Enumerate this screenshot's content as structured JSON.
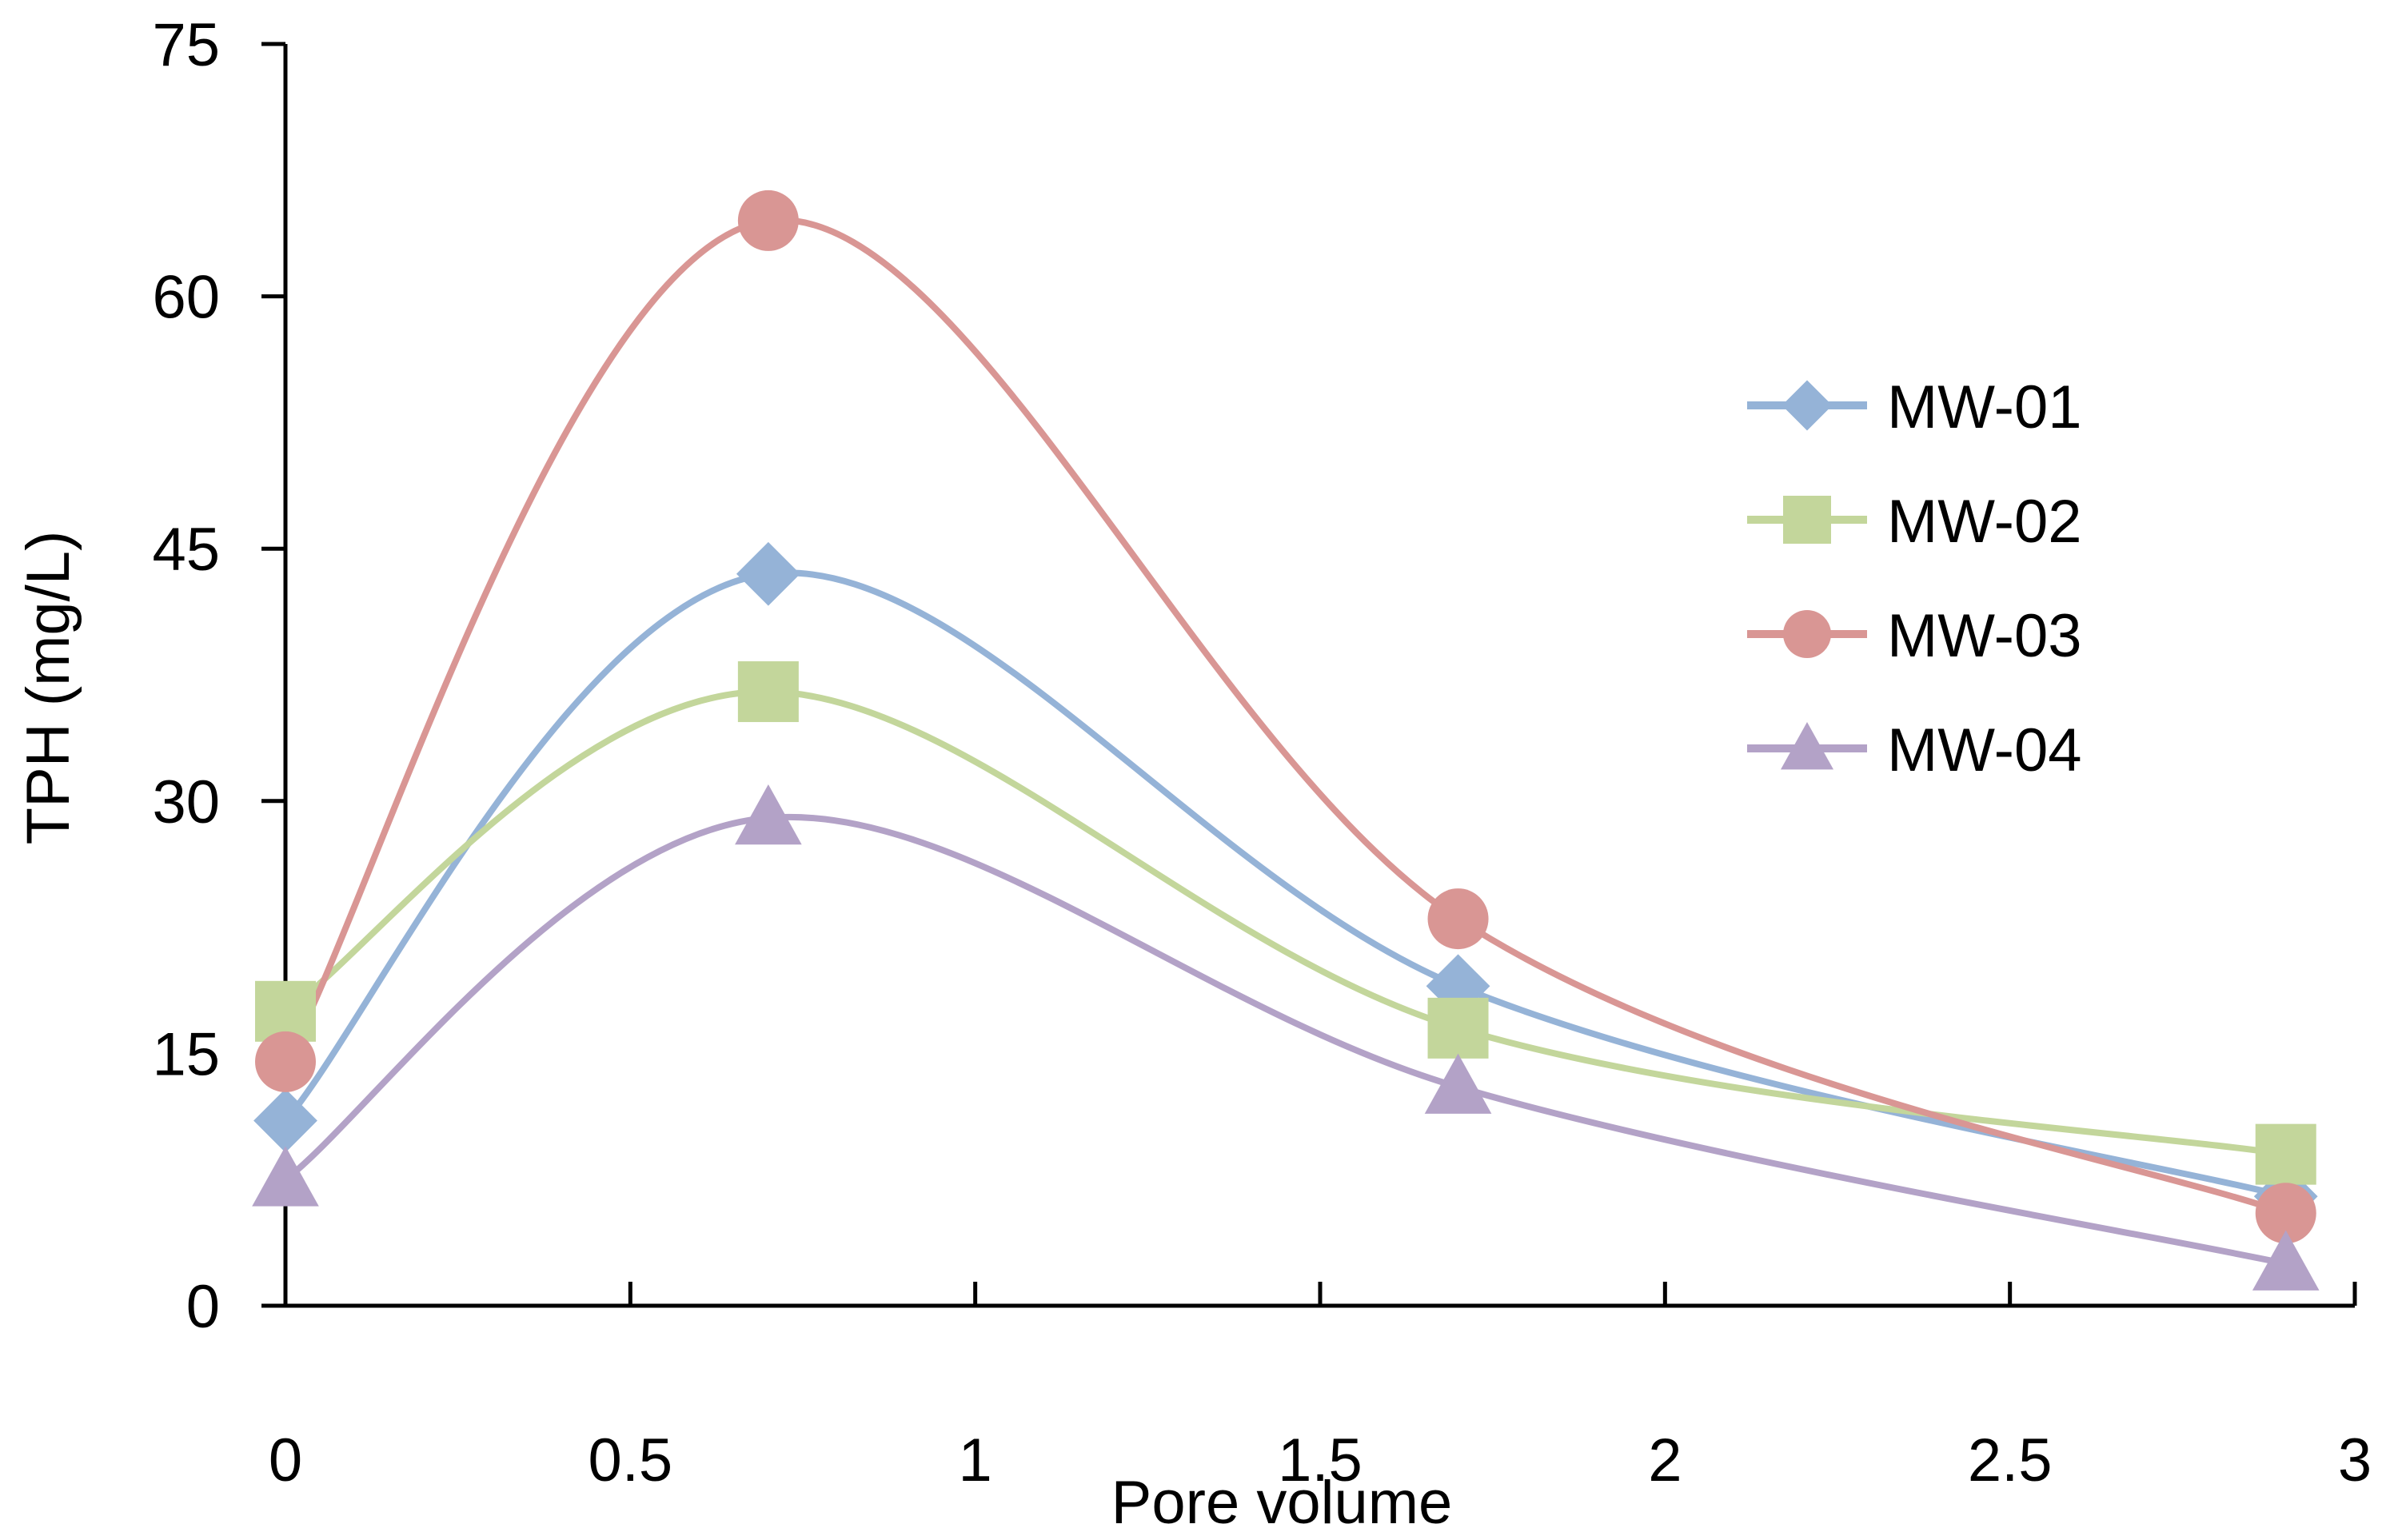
{
  "chart_data": {
    "type": "line",
    "title": "",
    "xlabel": "Pore volume",
    "ylabel": "TPH (mg/L)",
    "xlim": [
      0,
      3
    ],
    "ylim": [
      0,
      75
    ],
    "xticks": [
      0,
      0.5,
      1,
      1.5,
      2,
      2.5,
      3
    ],
    "yticks": [
      0,
      15,
      30,
      45,
      60,
      75
    ],
    "xtick_labels": [
      "0",
      "0.5",
      "1",
      "1.5",
      "2",
      "2.5",
      "3"
    ],
    "ytick_labels": [
      "0",
      "15",
      "30",
      "45",
      "60",
      "75"
    ],
    "smooth": true,
    "legend_position": "right",
    "x": [
      0,
      0.7,
      1.7,
      2.9
    ],
    "series": [
      {
        "name": "MW-01",
        "values": [
          11.0,
          43.5,
          19.0,
          6.5
        ],
        "color": "#95B3D7",
        "marker": "diamond"
      },
      {
        "name": "MW-02",
        "values": [
          17.5,
          36.5,
          16.5,
          9.0
        ],
        "color": "#C3D69B",
        "marker": "square"
      },
      {
        "name": "MW-03",
        "values": [
          14.5,
          64.5,
          23.0,
          5.5
        ],
        "color": "#D99694",
        "marker": "circle"
      },
      {
        "name": "MW-04",
        "values": [
          7.5,
          29.0,
          13.0,
          2.5
        ],
        "color": "#B3A2C7",
        "marker": "triangle"
      }
    ]
  }
}
